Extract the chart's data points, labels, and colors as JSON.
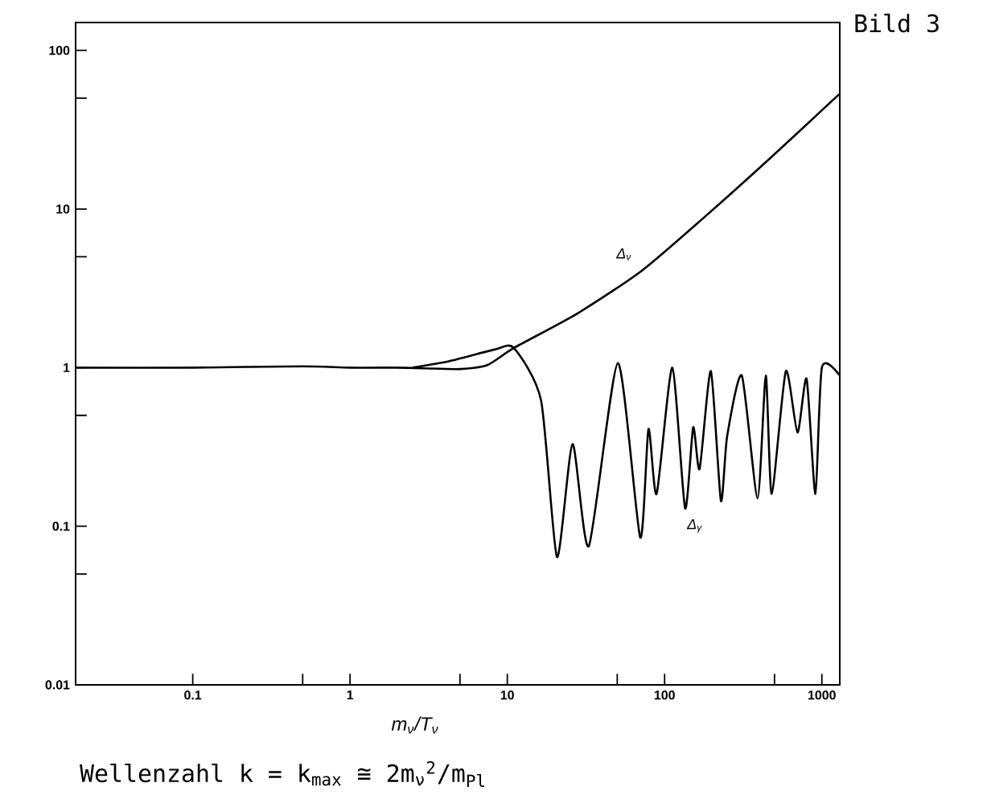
{
  "chart_data": {
    "type": "line",
    "title": "Bild 3",
    "xlabel": "m$_{ν}$/T$_{ν}$",
    "log": "xy",
    "xlim": [
      0.018,
      1300
    ],
    "ylim": [
      0.01,
      150
    ],
    "xticks": [
      0.1,
      {
        "value": 0.5,
        "label": null
      },
      1,
      {
        "value": 5,
        "label": null
      },
      10,
      {
        "value": 50,
        "label": null
      },
      100,
      {
        "value": 500,
        "label": null
      },
      1000
    ],
    "yticks": [
      0.01,
      {
        "value": 0.05,
        "label": null
      },
      0.1,
      {
        "value": 0.5,
        "label": null
      },
      1,
      {
        "value": 5,
        "label": null
      },
      10,
      {
        "value": 50,
        "label": null
      },
      100
    ],
    "annotations": [
      "Wellenzahl k = k$_{max}$ ≅ 2m$_{ν}$$^{2}$/m$_{Pl}$"
    ],
    "series": [
      {
        "name": "Δ$_{ν}$",
        "color": "#000000",
        "x": [
          0.018,
          0.1,
          0.5,
          1,
          2,
          3,
          5,
          7.5,
          11,
          28,
          72,
          184,
          471,
          1290
        ],
        "values": [
          1,
          1,
          1.02,
          1,
          1,
          0.99,
          0.98,
          1.04,
          1.33,
          2.2,
          4.1,
          9.1,
          21,
          53
        ]
      },
      {
        "name": "Δ$_{γ}$",
        "color": "#000000",
        "x": [
          2.5,
          4.3,
          8.3,
          11,
          16.4,
          20.7,
          26,
          33,
          50.5,
          70,
          79,
          89,
          112,
          135,
          152,
          167,
          197,
          228,
          250,
          310,
          390,
          440,
          480,
          590,
          700,
          800,
          910,
          1000,
          1290
        ],
        "values": [
          1,
          1.1,
          1.3,
          1.33,
          0.62,
          0.064,
          0.33,
          0.075,
          1.07,
          0.085,
          0.41,
          0.16,
          1.0,
          0.13,
          0.42,
          0.23,
          0.95,
          0.145,
          0.37,
          0.89,
          0.15,
          0.89,
          0.16,
          0.95,
          0.39,
          0.85,
          0.16,
          1.0,
          0.9
        ]
      }
    ]
  }
}
